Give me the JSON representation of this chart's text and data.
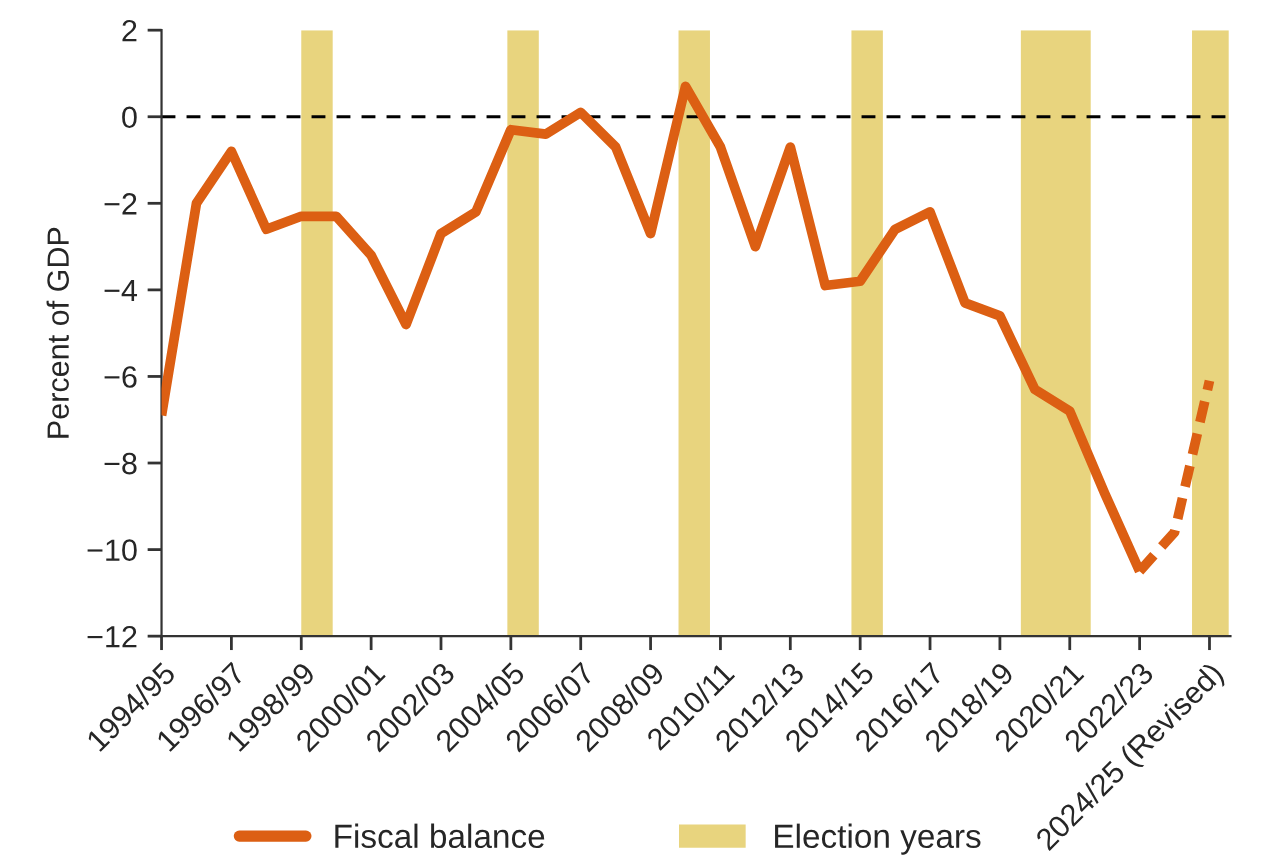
{
  "chart_data": {
    "type": "line",
    "ylabel": "Percent of GDP",
    "categories": [
      "1994/95",
      null,
      "1996/97",
      null,
      "1998/99",
      null,
      "2000/01",
      null,
      "2002/03",
      null,
      "2004/05",
      null,
      "2006/07",
      null,
      "2008/09",
      null,
      "2010/11",
      null,
      "2012/13",
      null,
      "2014/15",
      null,
      "2016/17",
      null,
      "2018/19",
      null,
      "2020/21",
      null,
      "2022/23",
      null,
      "2024/25 (Revised)"
    ],
    "ylim": [
      -12,
      2
    ],
    "yticks": [
      2,
      0,
      {
        "value": -2,
        "label": "−2"
      },
      {
        "value": -4,
        "label": "−4"
      },
      {
        "value": -6,
        "label": "−6"
      },
      {
        "value": -8,
        "label": "−8"
      },
      {
        "value": -10,
        "label": "−10"
      },
      {
        "value": -12,
        "label": "−12"
      }
    ],
    "series": [
      {
        "name": "Fiscal balance",
        "color": "#dc5f13",
        "line_style": "solid",
        "values": [
          -6.9,
          -2.0,
          -0.8,
          -2.6,
          -2.3,
          -2.3,
          -3.2,
          -4.8,
          -2.7,
          -2.2,
          -0.3,
          -0.4,
          0.1,
          -0.7,
          -2.7,
          0.7,
          -0.7,
          -3.0,
          -0.7,
          -3.9,
          -3.8,
          -2.6,
          -2.2,
          -4.3,
          -4.6,
          -6.3,
          -6.8,
          -8.7,
          -10.5,
          null,
          null
        ]
      },
      {
        "color": "#dc5f13",
        "line_style": "dashed",
        "values": [
          null,
          null,
          null,
          null,
          null,
          null,
          null,
          null,
          null,
          null,
          null,
          null,
          null,
          null,
          null,
          null,
          null,
          null,
          null,
          null,
          null,
          null,
          null,
          null,
          null,
          null,
          null,
          null,
          -10.5,
          -9.6,
          -6.1
        ]
      }
    ],
    "annotations": [
      "Election years"
    ],
    "ref_lines": [
      {
        "axis": "y",
        "value": 0,
        "color": "#000000",
        "line_style": "dashed"
      }
    ],
    "grid": false,
    "legend": "bottom",
    "marker": "none"
  }
}
